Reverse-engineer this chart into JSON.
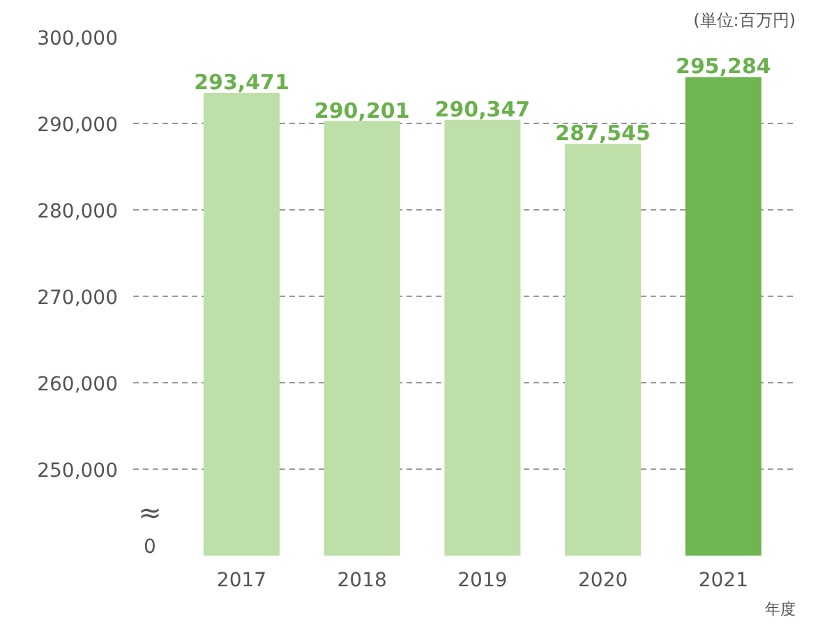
{
  "chart_data": {
    "type": "bar",
    "categories": [
      "2017",
      "2018",
      "2019",
      "2020",
      "2021"
    ],
    "values": [
      293471,
      290201,
      290347,
      287545,
      295284
    ],
    "colors": [
      "#bfdfa8",
      "#bfdfa8",
      "#bfdfa8",
      "#bfdfa8",
      "#6fb552"
    ],
    "ylim": [
      240000,
      300000
    ],
    "yticks": [
      {
        "value": 250000,
        "label": "250,000"
      },
      {
        "value": 260000,
        "label": "260,000"
      },
      {
        "value": 270000,
        "label": "270,000"
      },
      {
        "value": 280000,
        "label": "280,000"
      },
      {
        "value": 290000,
        "label": "290,000"
      },
      {
        "value": 300000,
        "label": "300,000"
      }
    ],
    "value_labels": [
      "293,471",
      "290,201",
      "290,347",
      "287,545",
      "295,284"
    ],
    "xlabel": "年度",
    "annotations": [
      "(単位:百万円)",
      "≈",
      "0"
    ],
    "grid": "y"
  }
}
